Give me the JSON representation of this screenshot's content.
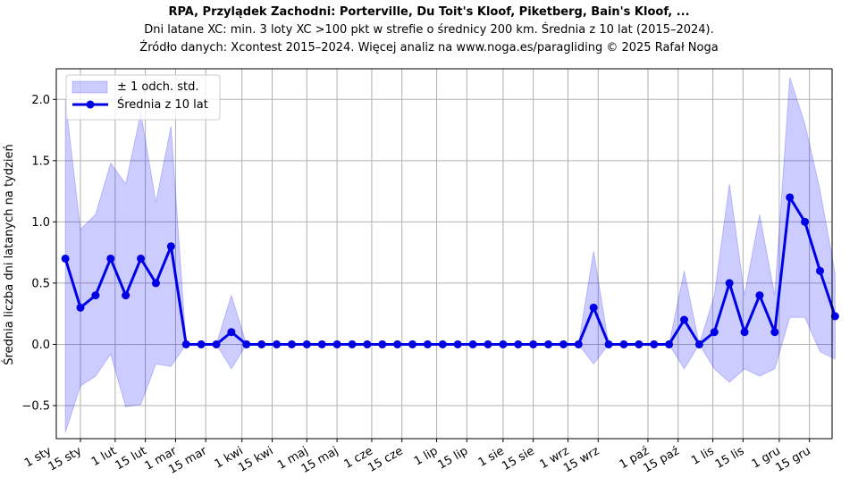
{
  "chart_data": {
    "type": "line",
    "title": "RPA, Przylądek Zachodni: Porterville, Du Toit's Kloof, Piketberg, Bain's Kloof, ...",
    "subtitle_lines": [
      "Dni latane XC: min. 3 loty XC >100 pkt w strefie o średnicy 200 km. Średnia z 10 lat (2015–2024).",
      "Źródło danych: Xcontest 2015–2024. Więcej analiz na www.noga.es/paragliding © 2025 Rafał Noga"
    ],
    "ylabel": "Średnia liczba dni latanych na tydzień",
    "xlabel": "",
    "ylim": [
      -0.77,
      2.25
    ],
    "xlim": [
      0.4,
      51.8
    ],
    "grid": true,
    "yticks": [
      -0.5,
      0.0,
      0.5,
      1.0,
      1.5,
      2.0
    ],
    "ytick_labels": [
      "−0.5",
      "0.0",
      "0.5",
      "1.0",
      "1.5",
      "2.0"
    ],
    "xticks": [
      0,
      2.0,
      4.3,
      6.3,
      8.3,
      10.3,
      12.7,
      14.7,
      17.0,
      19.0,
      21.3,
      23.3,
      25.6,
      27.6,
      30.0,
      32.0,
      34.3,
      36.3,
      39.6,
      41.6,
      43.9,
      45.9,
      48.3,
      50.3
    ],
    "xtick_labels": [
      "1 sty",
      "15 sty",
      "1 lut",
      "15 lut",
      "1 mar",
      "15 mar",
      "1 kwi",
      "15 kwi",
      "1 maj",
      "15 maj",
      "1 cze",
      "15 cze",
      "1 lip",
      "15 lip",
      "1 sie",
      "15 sie",
      "1 wrz",
      "15 wrz",
      "1 paź",
      "15 paź",
      "1 lis",
      "15 lis",
      "1 gru",
      "15 gru"
    ],
    "x": [
      1,
      2,
      3,
      4,
      5,
      6,
      7,
      8,
      9,
      10,
      11,
      12,
      13,
      14,
      15,
      16,
      17,
      18,
      19,
      20,
      21,
      22,
      23,
      24,
      25,
      26,
      27,
      28,
      29,
      30,
      31,
      32,
      33,
      34,
      35,
      36,
      37,
      38,
      39,
      40,
      41,
      42,
      43,
      44,
      45,
      46,
      47,
      48,
      49,
      50,
      51,
      52
    ],
    "series": [
      {
        "name": "Średnia z 10 lat",
        "color": "#0000e6",
        "values": [
          0.7,
          0.3,
          0.4,
          0.7,
          0.4,
          0.7,
          0.5,
          0.8,
          0.0,
          0.0,
          0.0,
          0.1,
          0.0,
          0.0,
          0.0,
          0.0,
          0.0,
          0.0,
          0.0,
          0.0,
          0.0,
          0.0,
          0.0,
          0.0,
          0.0,
          0.0,
          0.0,
          0.0,
          0.0,
          0.0,
          0.0,
          0.0,
          0.0,
          0.0,
          0.0,
          0.3,
          0.0,
          0.0,
          0.0,
          0.0,
          0.0,
          0.2,
          0.0,
          0.1,
          0.5,
          0.1,
          0.4,
          0.1,
          1.2,
          1.0,
          0.6,
          0.23
        ]
      }
    ],
    "band": {
      "name": "± 1 odch. std.",
      "color": "#0000ff",
      "opacity": 0.2,
      "upper": [
        2.0,
        0.94,
        1.06,
        1.48,
        1.31,
        1.89,
        1.16,
        1.78,
        0.0,
        0.0,
        0.0,
        0.4,
        0.0,
        0.0,
        0.0,
        0.0,
        0.0,
        0.0,
        0.0,
        0.0,
        0.0,
        0.0,
        0.0,
        0.0,
        0.0,
        0.0,
        0.0,
        0.0,
        0.0,
        0.0,
        0.0,
        0.0,
        0.0,
        0.0,
        0.0,
        0.76,
        0.0,
        0.0,
        0.0,
        0.0,
        0.0,
        0.6,
        0.0,
        0.4,
        1.31,
        0.4,
        1.06,
        0.4,
        2.18,
        1.8,
        1.26,
        0.58
      ],
      "lower": [
        -0.72,
        -0.34,
        -0.26,
        -0.08,
        -0.51,
        -0.49,
        -0.16,
        -0.18,
        0.0,
        0.0,
        0.0,
        -0.2,
        0.0,
        0.0,
        0.0,
        0.0,
        0.0,
        0.0,
        0.0,
        0.0,
        0.0,
        0.0,
        0.0,
        0.0,
        0.0,
        0.0,
        0.0,
        0.0,
        0.0,
        0.0,
        0.0,
        0.0,
        0.0,
        0.0,
        0.0,
        -0.16,
        0.0,
        0.0,
        0.0,
        0.0,
        0.0,
        -0.2,
        0.0,
        -0.2,
        -0.31,
        -0.2,
        -0.26,
        -0.2,
        0.22,
        0.22,
        -0.06,
        -0.12
      ]
    },
    "legend": {
      "placement": "top-left",
      "entries": [
        "± 1 odch. std.",
        "Średnia z 10 lat"
      ]
    }
  }
}
